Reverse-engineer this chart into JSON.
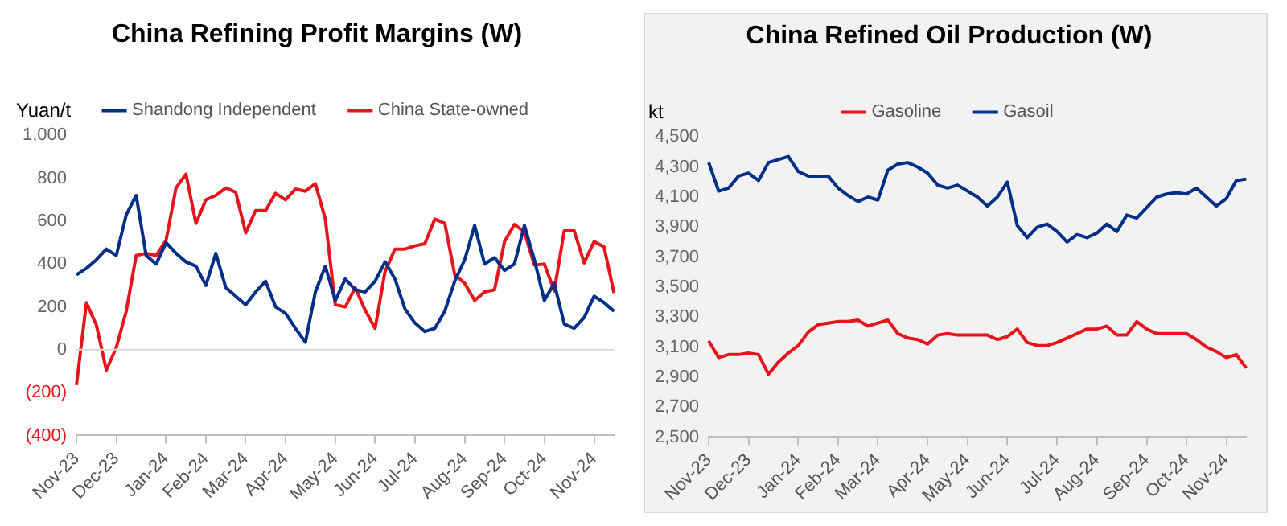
{
  "chart_data": [
    {
      "type": "line",
      "title": "China Refining Profit Margins (W)",
      "ylabel": "Yuan/t",
      "categories": [
        "Nov-23",
        null,
        null,
        null,
        "Dec-23",
        null,
        null,
        null,
        null,
        "Jan-24",
        null,
        null,
        null,
        "Feb-24",
        null,
        null,
        null,
        "Mar-24",
        null,
        null,
        null,
        "Apr-24",
        null,
        null,
        null,
        null,
        "May-24",
        null,
        null,
        null,
        "Jun-24",
        null,
        null,
        null,
        "Jul-24",
        null,
        null,
        null,
        null,
        "Aug-24",
        null,
        null,
        null,
        "Sep-24",
        null,
        null,
        null,
        "Oct-24",
        null,
        null,
        null,
        null,
        "Nov-24",
        null,
        null
      ],
      "series": [
        {
          "name": "Shandong Independent",
          "color": "#002f87",
          "values": [
            350,
            380,
            420,
            470,
            440,
            630,
            720,
            440,
            400,
            500,
            450,
            410,
            390,
            300,
            450,
            290,
            250,
            210,
            270,
            320,
            200,
            170,
            100,
            35,
            270,
            390,
            230,
            330,
            280,
            270,
            320,
            410,
            330,
            190,
            125,
            85,
            100,
            180,
            320,
            420,
            580,
            400,
            430,
            370,
            400,
            580,
            420,
            230,
            310,
            120,
            100,
            150,
            250,
            220,
            180
          ]
        },
        {
          "name": "China State-owned",
          "color": "#e8141b",
          "values": [
            -165,
            220,
            115,
            -95,
            10,
            180,
            440,
            450,
            440,
            510,
            755,
            820,
            590,
            700,
            720,
            755,
            735,
            545,
            650,
            650,
            730,
            700,
            750,
            740,
            775,
            610,
            210,
            200,
            290,
            185,
            100,
            365,
            470,
            470,
            485,
            495,
            610,
            590,
            350,
            310,
            230,
            270,
            280,
            505,
            585,
            550,
            395,
            400,
            275,
            555,
            555,
            405,
            505,
            480,
            265
          ]
        }
      ],
      "ylim": [
        -400,
        1000
      ],
      "yticks": [
        {
          "value": -400,
          "label": "(400)"
        },
        {
          "value": -200,
          "label": "(200)"
        },
        0,
        {
          "value": 200,
          "label": "200"
        },
        {
          "value": 400,
          "label": "400"
        },
        {
          "value": 600,
          "label": "600"
        },
        {
          "value": 800,
          "label": "800"
        },
        {
          "value": 1000,
          "label": "1,000"
        }
      ],
      "ref_lines": [
        {
          "axis": "y",
          "value": 0,
          "color": "#d9d9d9"
        }
      ],
      "legend": "top",
      "grid": false
    },
    {
      "type": "line",
      "title": "China Refined Oil Production (W)",
      "ylabel": "kt",
      "categories": [
        "Nov-23",
        null,
        null,
        null,
        "Dec-23",
        null,
        null,
        null,
        null,
        "Jan-24",
        null,
        null,
        null,
        "Feb-24",
        null,
        null,
        null,
        "Mar-24",
        null,
        null,
        null,
        null,
        "Apr-24",
        null,
        null,
        null,
        "May-24",
        null,
        null,
        null,
        "Jun-24",
        null,
        null,
        null,
        null,
        "Jul-24",
        null,
        null,
        null,
        "Aug-24",
        null,
        null,
        null,
        null,
        "Sep-24",
        null,
        null,
        null,
        "Oct-24",
        null,
        null,
        null,
        "Nov-24",
        null,
        null
      ],
      "series": [
        {
          "name": "Gasoline",
          "color": "#e8141b",
          "values": [
            3140,
            3030,
            3050,
            3050,
            3060,
            3050,
            2920,
            3000,
            3060,
            3110,
            3200,
            3250,
            3260,
            3270,
            3270,
            3280,
            3240,
            3260,
            3280,
            3190,
            3160,
            3150,
            3120,
            3180,
            3190,
            3180,
            3180,
            3180,
            3180,
            3150,
            3170,
            3220,
            3130,
            3110,
            3110,
            3130,
            3160,
            3190,
            3220,
            3220,
            3240,
            3180,
            3180,
            3270,
            3220,
            3190,
            3190,
            3190,
            3190,
            3150,
            3100,
            3070,
            3030,
            3050,
            2960
          ]
        },
        {
          "name": "Gasoil",
          "color": "#002f87",
          "values": [
            4330,
            4140,
            4160,
            4240,
            4260,
            4210,
            4330,
            4350,
            4370,
            4270,
            4240,
            4240,
            4240,
            4160,
            4110,
            4070,
            4100,
            4080,
            4280,
            4320,
            4330,
            4300,
            4260,
            4180,
            4160,
            4180,
            4140,
            4100,
            4040,
            4100,
            4200,
            3910,
            3830,
            3900,
            3920,
            3870,
            3800,
            3850,
            3830,
            3860,
            3920,
            3870,
            3980,
            3960,
            4030,
            4100,
            4120,
            4130,
            4120,
            4160,
            4100,
            4040,
            4090,
            4210,
            4220
          ]
        }
      ],
      "ylim": [
        2500,
        4500
      ],
      "yticks": [
        {
          "value": 2500,
          "label": "2,500"
        },
        {
          "value": 2700,
          "label": "2,700"
        },
        {
          "value": 2900,
          "label": "2,900"
        },
        {
          "value": 3100,
          "label": "3,100"
        },
        {
          "value": 3300,
          "label": "3,300"
        },
        {
          "value": 3500,
          "label": "3,500"
        },
        {
          "value": 3700,
          "label": "3,700"
        },
        {
          "value": 3900,
          "label": "3,900"
        },
        {
          "value": 4100,
          "label": "4,100"
        },
        {
          "value": 4300,
          "label": "4,300"
        },
        {
          "value": 4500,
          "label": "4,500"
        }
      ],
      "legend": "top",
      "grid": false
    }
  ]
}
